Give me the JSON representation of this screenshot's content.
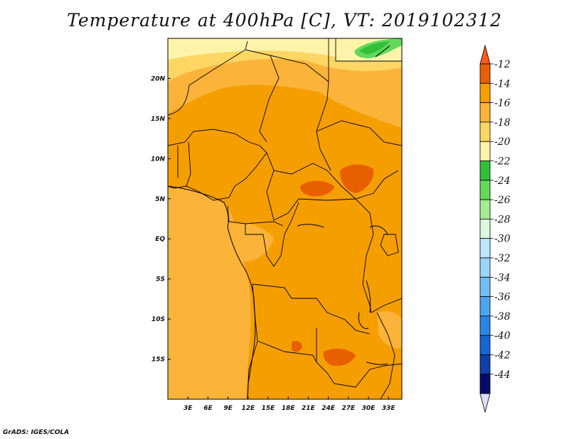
{
  "title": "Temperature at 400hPa [C], VT: 2019102312",
  "footer": "GrADS: IGES/COLA",
  "map": {
    "variable": "Temperature",
    "level": "400hPa",
    "units": "C",
    "valid_time": "2019102312",
    "lon_ticks": [
      "3E",
      "6E",
      "9E",
      "12E",
      "15E",
      "18E",
      "21E",
      "24E",
      "27E",
      "30E",
      "33E"
    ],
    "lat_ticks": [
      "20N",
      "15N",
      "10N",
      "5N",
      "EQ",
      "5S",
      "10S",
      "15S"
    ],
    "lon_range": [
      0,
      35
    ],
    "lat_range": [
      -20,
      25
    ]
  },
  "colorbar": {
    "labels": [
      "-12",
      "-14",
      "-16",
      "-18",
      "-20",
      "-22",
      "-24",
      "-26",
      "-28",
      "-30",
      "-32",
      "-34",
      "-36",
      "-38",
      "-40",
      "-42",
      "-44"
    ],
    "colors": [
      "#ff5a1e",
      "#e85f00",
      "#f59e00",
      "#fbb33a",
      "#fdd664",
      "#fff3aa",
      "#31bf3a",
      "#63d95c",
      "#a3ee94",
      "#def7df",
      "#bee7fc",
      "#9ad4f9",
      "#72bdf4",
      "#4da5ee",
      "#2a86e4",
      "#1666d2",
      "#0f3fa7",
      "#070a6a",
      "#dedef7"
    ]
  }
}
